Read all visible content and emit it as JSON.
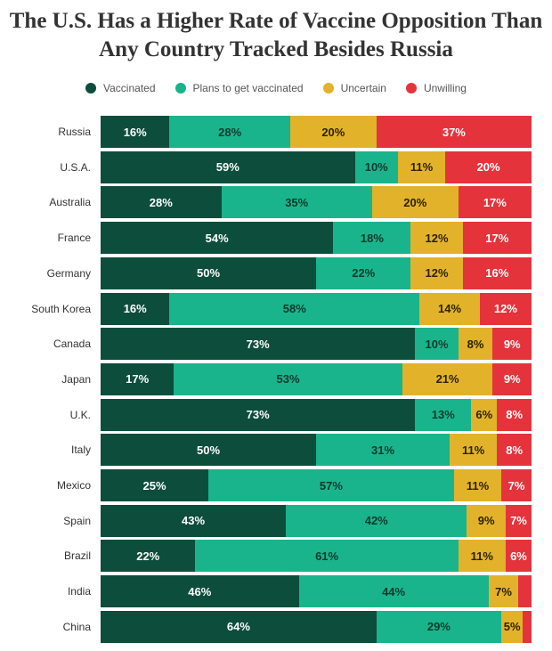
{
  "title_lines": [
    "The U.S. Has a Higher Rate of Vaccine Opposition Than",
    "Any Country Tracked Besides Russia"
  ],
  "legend": [
    {
      "label": "Vaccinated",
      "color": "#0d4d3b"
    },
    {
      "label": "Plans to get vaccinated",
      "color": "#19b48c"
    },
    {
      "label": "Uncertain",
      "color": "#e2b22a"
    },
    {
      "label": "Unwilling",
      "color": "#e5333c"
    }
  ],
  "chart_data": {
    "type": "bar",
    "orientation": "horizontal",
    "stacked": true,
    "unit": "%",
    "categories": [
      "Russia",
      "U.S.A.",
      "Australia",
      "France",
      "Germany",
      "South Korea",
      "Canada",
      "Japan",
      "U.K.",
      "Italy",
      "Mexico",
      "Spain",
      "Brazil",
      "India",
      "China"
    ],
    "series": [
      {
        "name": "Vaccinated",
        "values": [
          16,
          59,
          28,
          54,
          50,
          16,
          73,
          17,
          73,
          50,
          25,
          43,
          22,
          46,
          64
        ]
      },
      {
        "name": "Plans to get vaccinated",
        "values": [
          28,
          10,
          35,
          18,
          22,
          58,
          10,
          53,
          13,
          31,
          57,
          42,
          61,
          44,
          29
        ]
      },
      {
        "name": "Uncertain",
        "values": [
          20,
          11,
          20,
          12,
          12,
          14,
          8,
          21,
          6,
          11,
          11,
          9,
          11,
          7,
          5
        ]
      },
      {
        "name": "Unwilling",
        "values": [
          37,
          20,
          17,
          17,
          16,
          12,
          9,
          9,
          8,
          8,
          7,
          7,
          6,
          null,
          null
        ]
      }
    ],
    "xlim": [
      0,
      100
    ],
    "grid": false,
    "legend_position": "top"
  }
}
